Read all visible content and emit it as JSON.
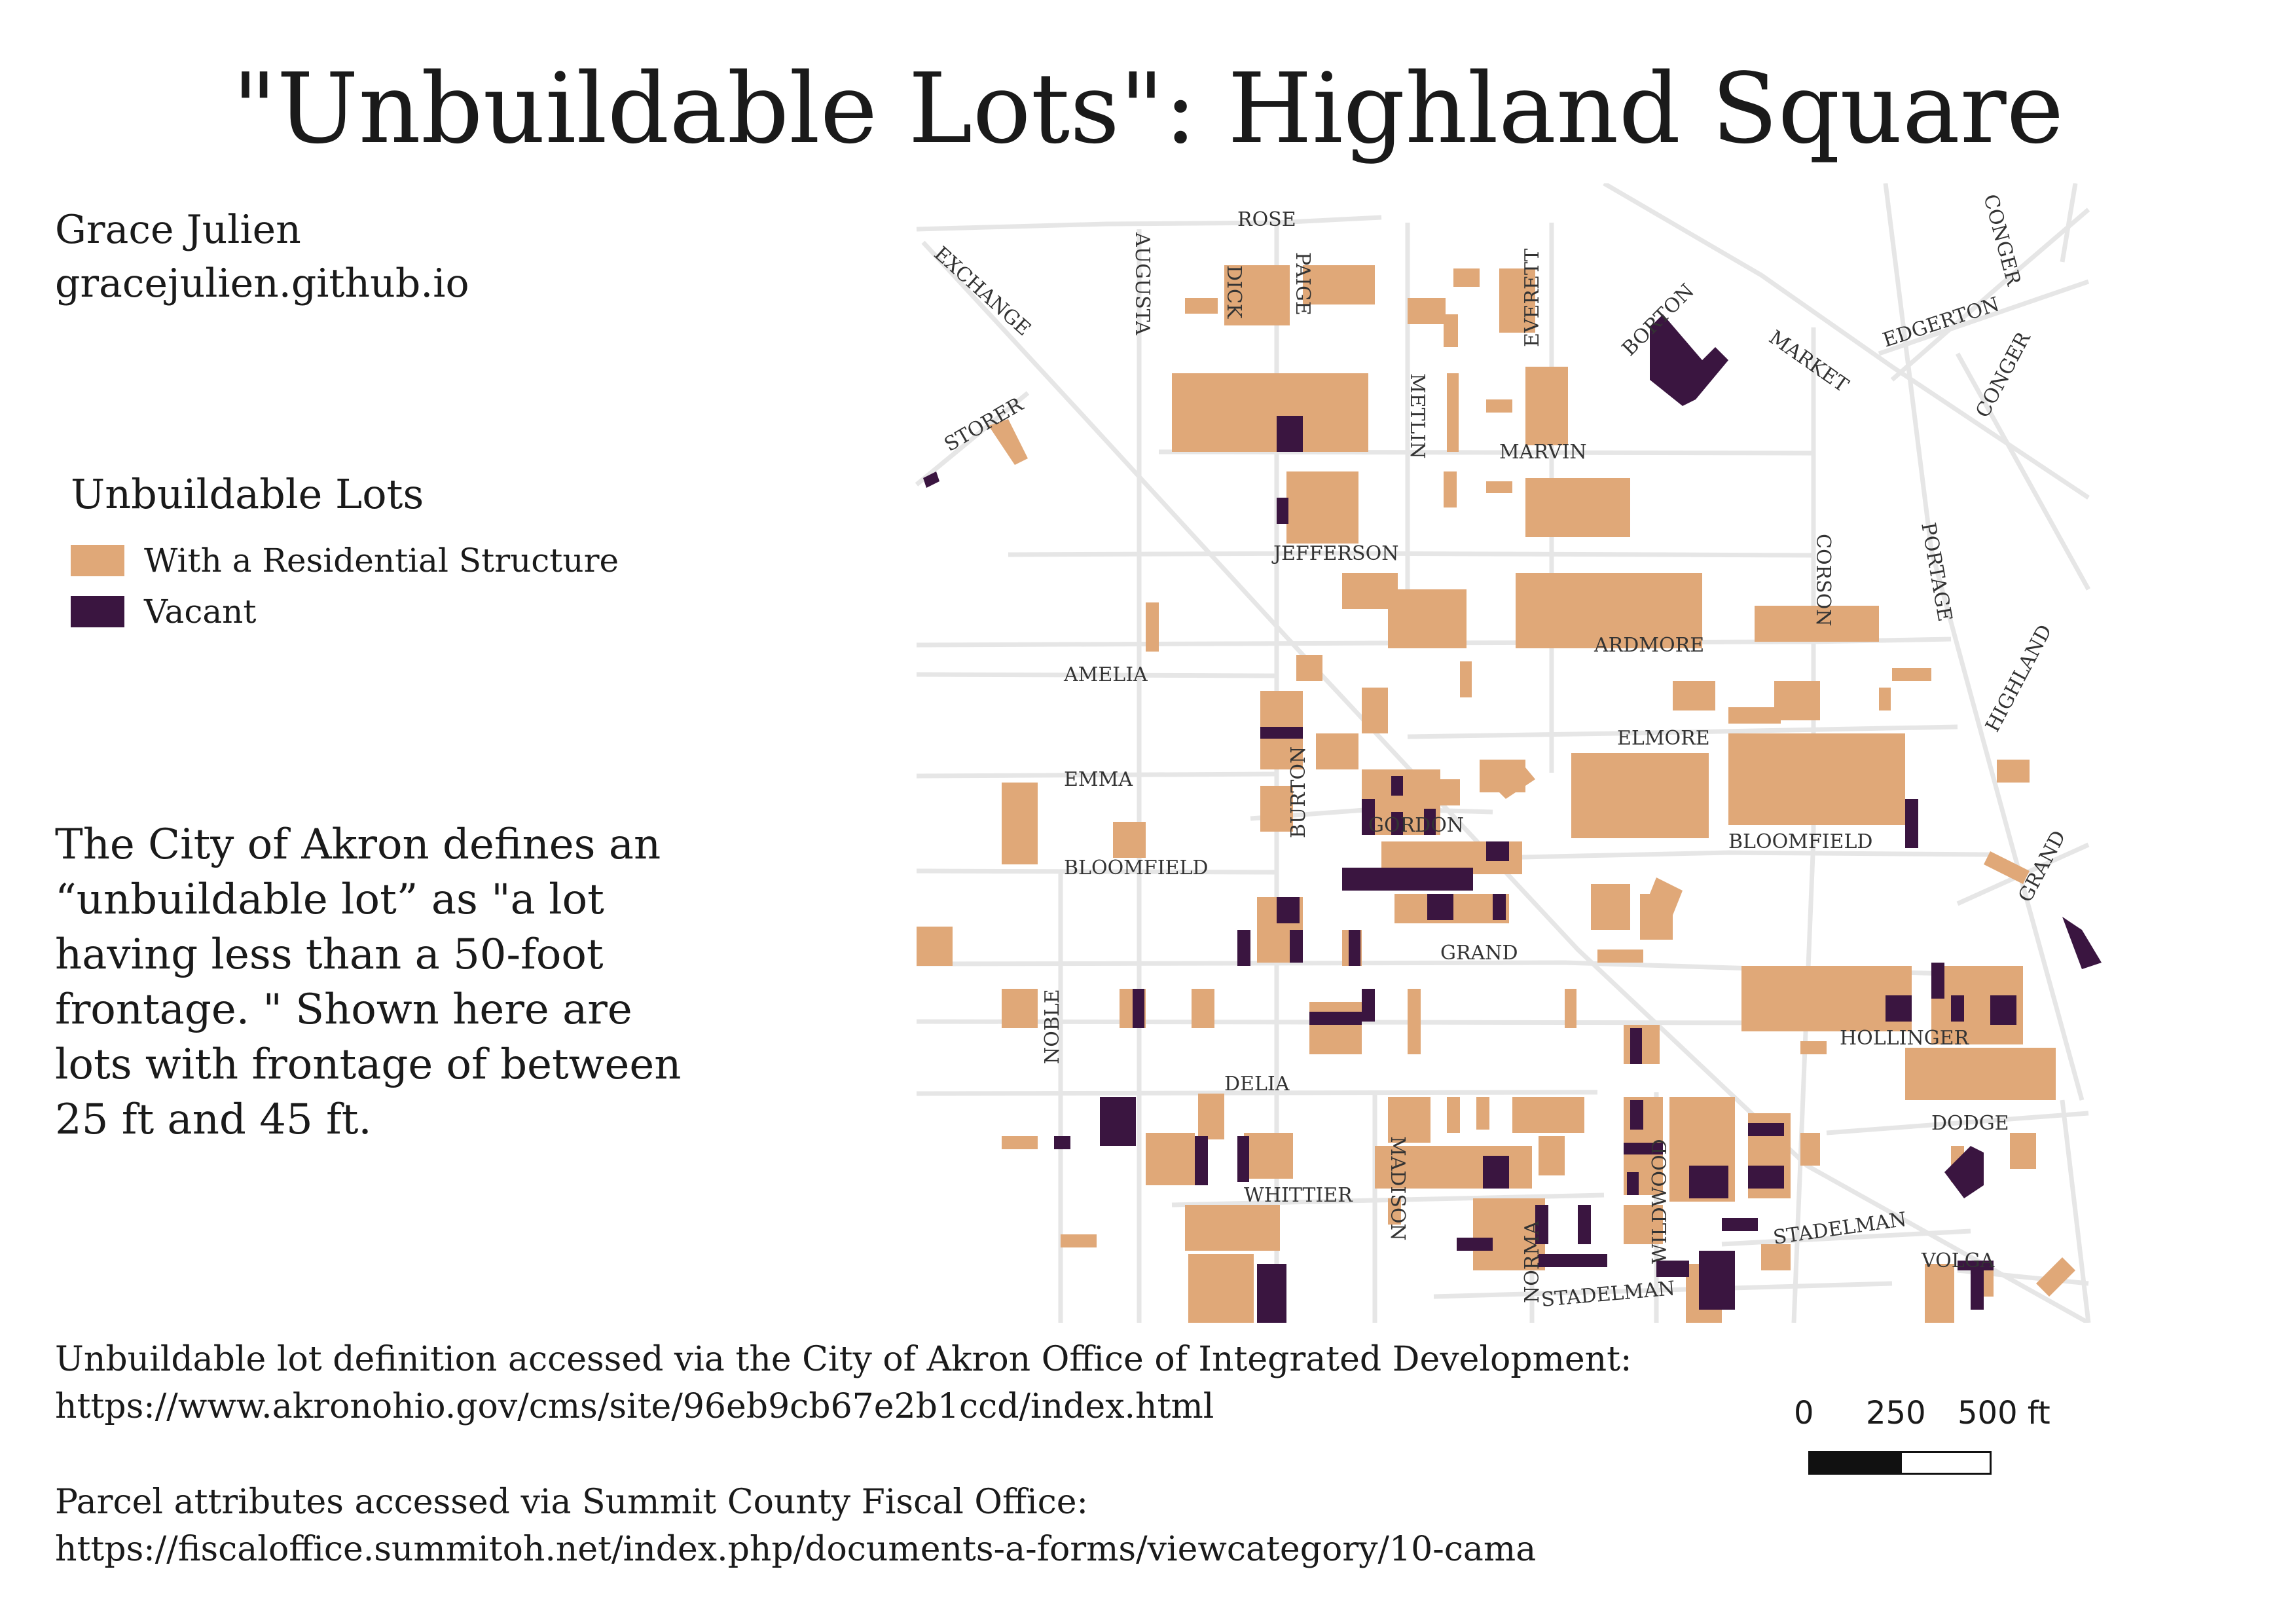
{
  "title": "\"Unbuildable Lots\": Highland Square",
  "author": {
    "name": "Grace Julien",
    "site": "gracejulien.github.io"
  },
  "legend": {
    "title": "Unbuildable Lots",
    "items": [
      {
        "label": "With a Residential Structure",
        "color": "#e0a878"
      },
      {
        "label": "Vacant",
        "color": "#3a1540"
      }
    ]
  },
  "description": "The City of Akron defines an “unbuildable lot” as \"a lot having less than a 50-foot frontage. \" Shown here are lots with frontage of between 25 ft and 45 ft.",
  "sources": [
    {
      "text": "Unbuildable lot definition accessed via the City of Akron Office of Integrated Development:",
      "url": "https://www.akronohio.gov/cms/site/96eb9cb67e2b1ccd/index.html"
    },
    {
      "text": "Parcel attributes accessed via Summit County Fiscal Office:",
      "url": "https://fiscaloffice.summitoh.net/index.php/documents-a-forms/viewcategory/10-cama"
    }
  ],
  "scale_bar": {
    "labels": [
      "0",
      "250",
      "500 ft"
    ]
  },
  "map": {
    "colors": {
      "residential": "#e0a878",
      "vacant": "#3a1540",
      "street": "#e6e6e6"
    },
    "street_labels": {
      "rose": "ROSE",
      "exchange": "EXCHANGE",
      "augusta": "AUGUSTA",
      "dick": "DICK",
      "paige": "PAIGE",
      "everett": "EVERETT",
      "borton_n": "BORTON",
      "market": "MARKET",
      "conger_n": "CONGER",
      "edgerton": "EDGERTON",
      "conger_s": "CONGER",
      "storer": "STORER",
      "metlin": "METLIN",
      "marvin": "MARVIN",
      "jefferson": "JEFFERSON",
      "corson": "CORSON",
      "portage": "PORTAGE",
      "ardmore": "ARDMORE",
      "amelia": "AMELIA",
      "highland": "HIGHLAND",
      "elmore": "ELMORE",
      "emma": "EMMA",
      "burton": "BURTON",
      "gordon": "GORDON",
      "bloomfield_w": "BLOOMFIELD",
      "bloomfield_e": "BLOOMFIELD",
      "grand_e": "GRAND",
      "grand": "GRAND",
      "noble": "NOBLE",
      "hollinger": "HOLLINGER",
      "delia": "DELIA",
      "dodge": "DODGE",
      "madison": "MADISON",
      "whittier": "WHITTIER",
      "wildwood": "WILDWOOD",
      "norma": "NORMA",
      "stadelman_e": "STADELMAN",
      "volga": "VOLGA",
      "stadelman": "STADELMAN"
    }
  }
}
